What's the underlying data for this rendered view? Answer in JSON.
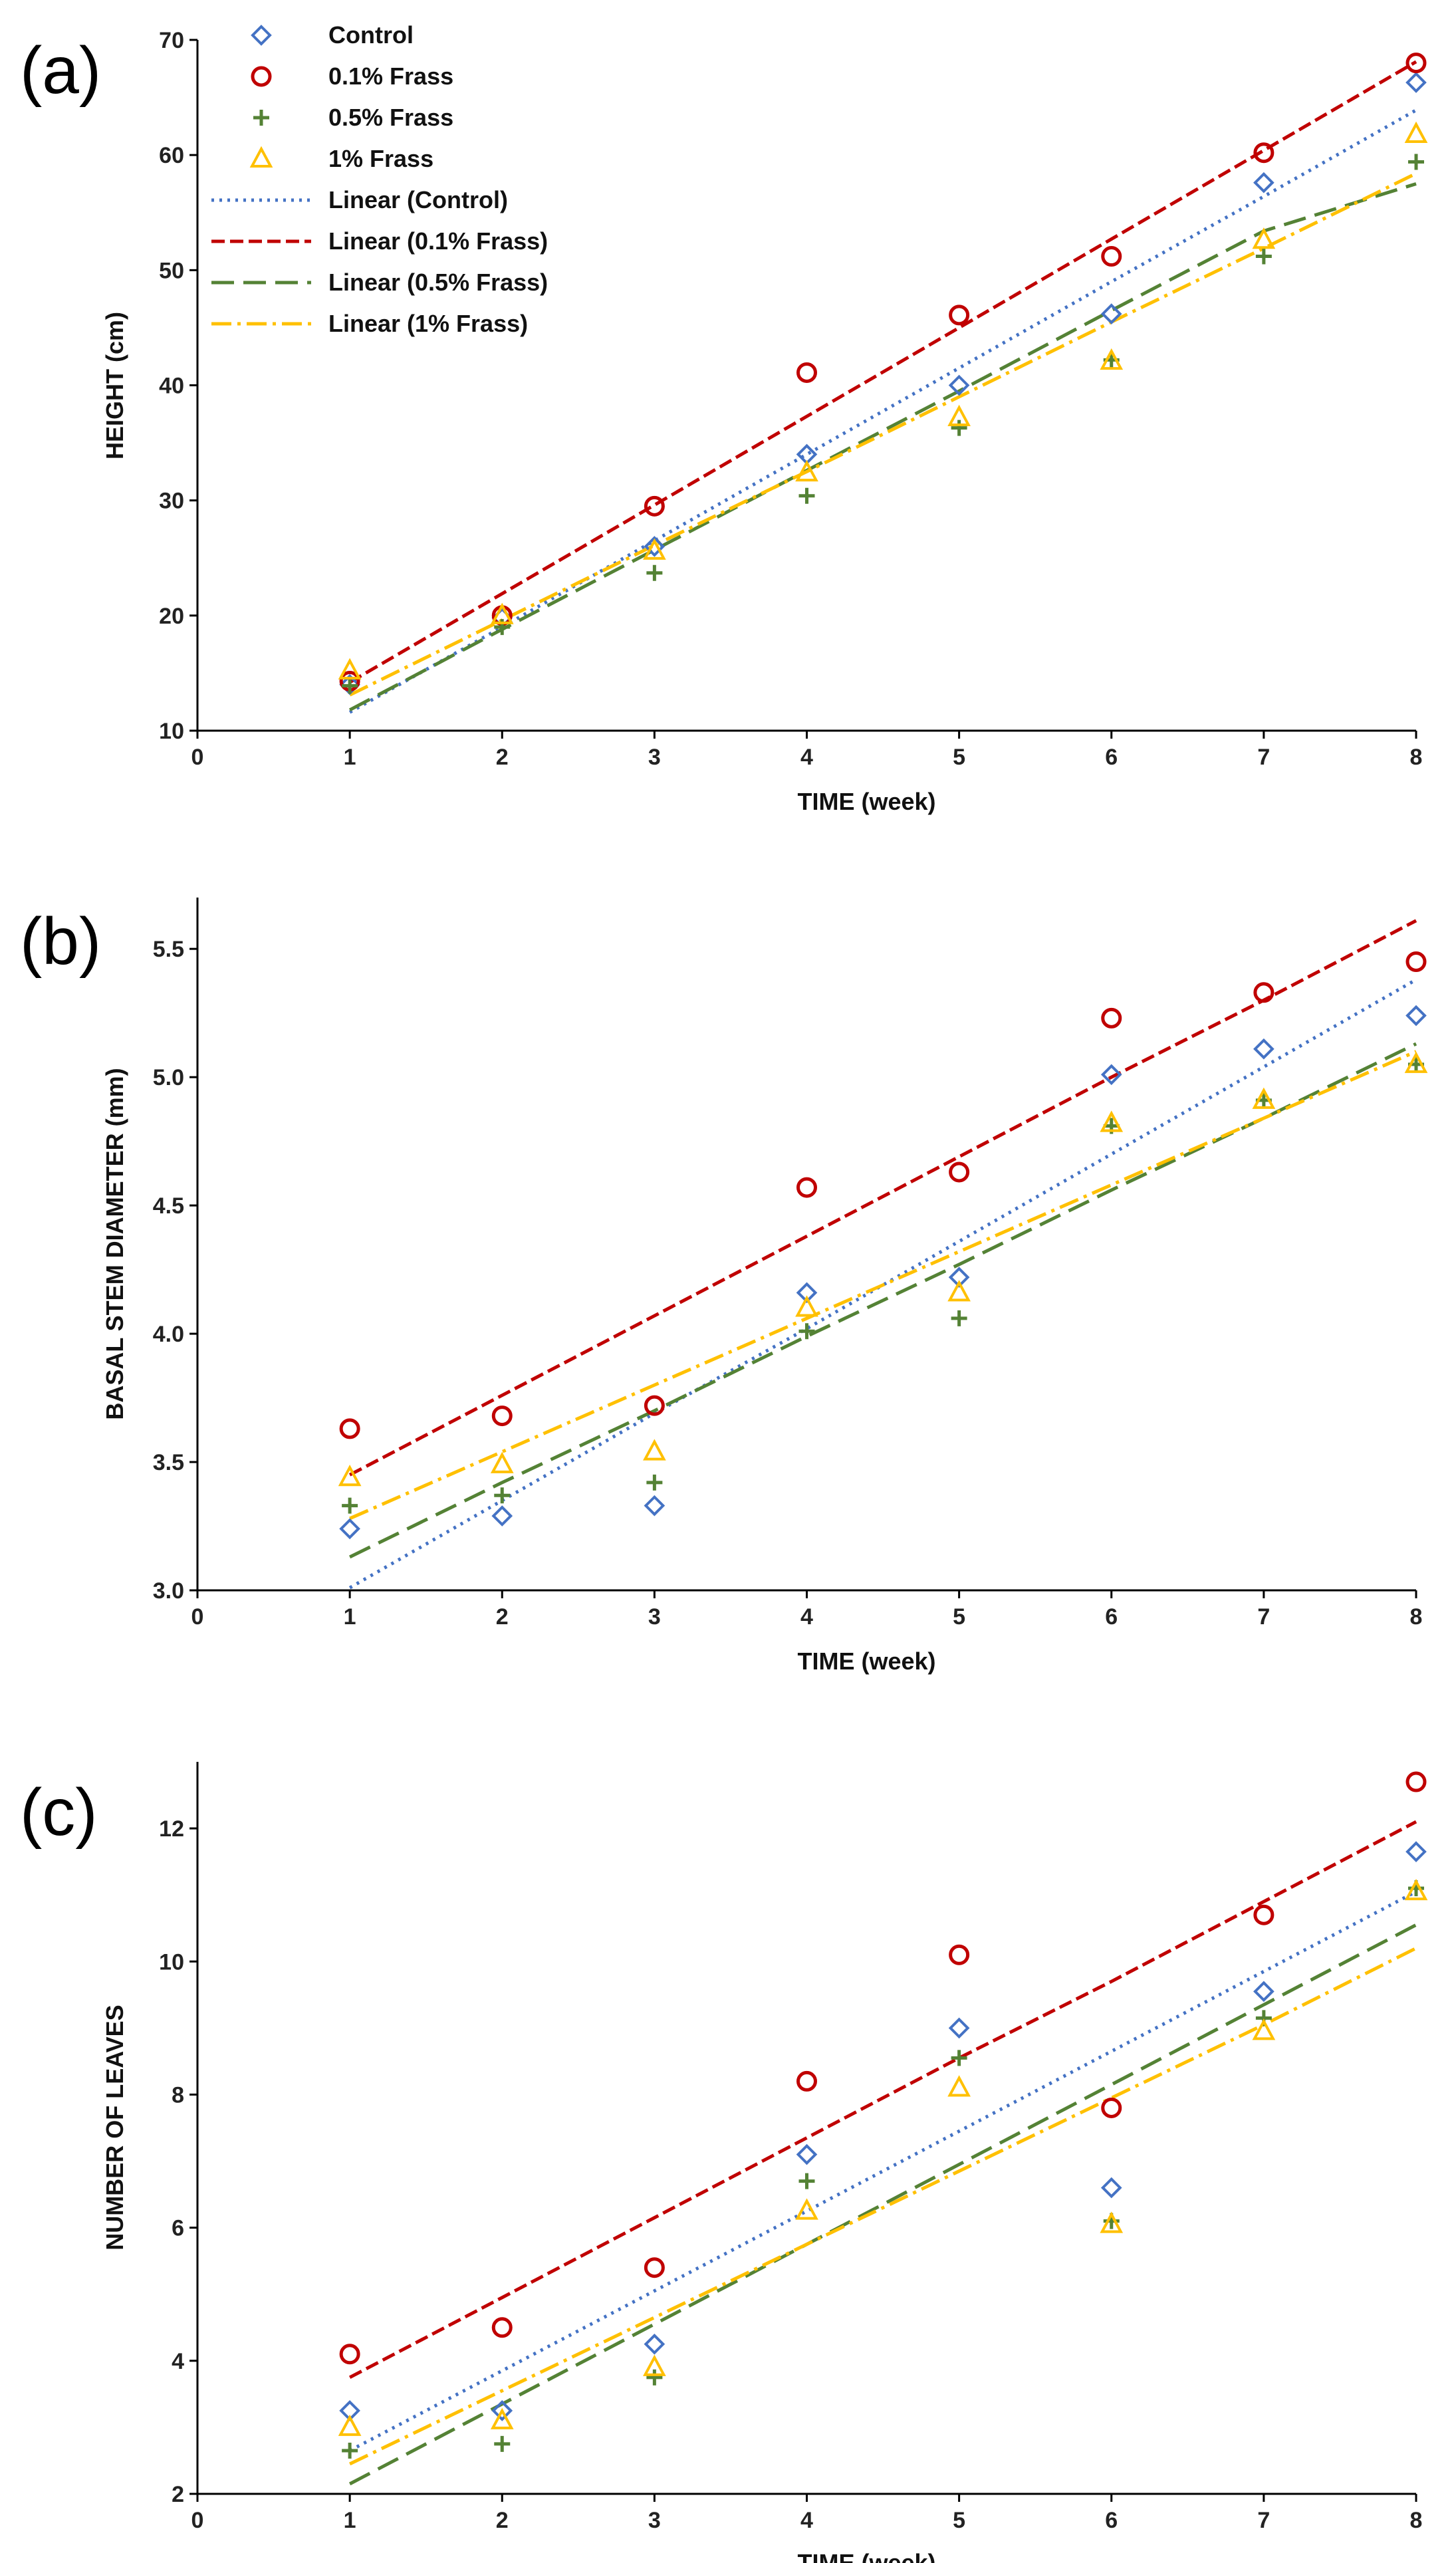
{
  "chart_data": [
    {
      "type": "scatter",
      "panel_label": "(a)",
      "title": "",
      "xlabel": "TIME (week)",
      "ylabel": "HEIGHT (cm)",
      "xlim": [
        0,
        8
      ],
      "ylim": [
        10,
        70
      ],
      "x_ticks": [
        "0",
        "1",
        "2",
        "3",
        "4",
        "5",
        "6",
        "7",
        "8"
      ],
      "y_ticks": [
        "10",
        "20",
        "30",
        "40",
        "50",
        "60",
        "70"
      ],
      "x": [
        1,
        2,
        3,
        4,
        5,
        6,
        7,
        8
      ],
      "series": [
        {
          "name": "Control",
          "marker": "diamond",
          "color": "#4472C4",
          "values": [
            14.0,
            19.8,
            26.0,
            34.0,
            40.0,
            46.2,
            57.6,
            66.3
          ],
          "trend": [
            11.6,
            19.0,
            26.5,
            34.0,
            41.5,
            49.0,
            56.4,
            63.9
          ]
        },
        {
          "name": "0.1% Frass",
          "marker": "circle",
          "color": "#C00000",
          "values": [
            14.3,
            20.0,
            29.5,
            41.1,
            46.1,
            51.2,
            60.2,
            68.0
          ],
          "trend": [
            14.2,
            21.9,
            29.6,
            37.3,
            45.0,
            52.7,
            60.4,
            68.1
          ]
        },
        {
          "name": "0.5% Frass",
          "marker": "plus",
          "color": "#548235",
          "values": [
            13.9,
            19.0,
            23.7,
            30.4,
            36.3,
            42.2,
            51.2,
            59.4
          ],
          "trend": [
            11.8,
            18.8,
            25.7,
            32.6,
            39.5,
            46.5,
            53.4,
            57.5
          ]
        },
        {
          "name": "1% Frass",
          "marker": "triangle",
          "color": "#FFC000",
          "values": [
            15.2,
            20.0,
            25.6,
            32.4,
            37.2,
            42.1,
            52.6,
            61.8
          ],
          "trend": [
            13.1,
            19.6,
            26.1,
            32.5,
            39.0,
            45.5,
            51.9,
            58.4
          ]
        }
      ],
      "legend": {
        "position": "top-left",
        "entries": [
          "Control",
          "0.1% Frass",
          "0.5% Frass",
          "1% Frass",
          "Linear (Control)",
          "Linear (0.1% Frass)",
          "Linear (0.5% Frass)",
          "Linear (1% Frass)"
        ]
      }
    },
    {
      "type": "scatter",
      "panel_label": "(b)",
      "title": "",
      "xlabel": "TIME (week)",
      "ylabel": "BASAL STEM DIAMETER (mm)",
      "xlim": [
        0,
        8
      ],
      "ylim": [
        3.0,
        5.7
      ],
      "x_ticks": [
        "0",
        "1",
        "2",
        "3",
        "4",
        "5",
        "6",
        "7",
        "8"
      ],
      "y_ticks": [
        "3.0",
        "3.5",
        "4.0",
        "4.5",
        "5.0",
        "5.5"
      ],
      "x": [
        1,
        2,
        3,
        4,
        5,
        6,
        7,
        8
      ],
      "series": [
        {
          "name": "Control",
          "marker": "diamond",
          "color": "#4472C4",
          "values": [
            3.24,
            3.29,
            3.33,
            4.16,
            4.22,
            5.01,
            5.11,
            5.24
          ],
          "trend": [
            3.01,
            3.35,
            3.69,
            4.02,
            4.36,
            4.7,
            5.04,
            5.38
          ]
        },
        {
          "name": "0.1% Frass",
          "marker": "circle",
          "color": "#C00000",
          "values": [
            3.63,
            3.68,
            3.72,
            4.57,
            4.63,
            5.23,
            5.33,
            5.45
          ],
          "trend": [
            3.45,
            3.76,
            4.07,
            4.38,
            4.69,
            5.0,
            5.3,
            5.61
          ]
        },
        {
          "name": "0.5% Frass",
          "marker": "plus",
          "color": "#548235",
          "values": [
            3.33,
            3.37,
            3.42,
            4.01,
            4.06,
            4.81,
            4.91,
            5.05
          ],
          "trend": [
            3.13,
            3.42,
            3.7,
            3.99,
            4.27,
            4.56,
            4.84,
            5.13
          ]
        },
        {
          "name": "1% Frass",
          "marker": "triangle",
          "color": "#FFC000",
          "values": [
            3.44,
            3.49,
            3.54,
            4.1,
            4.16,
            4.82,
            4.91,
            5.05
          ],
          "trend": [
            3.28,
            3.54,
            3.8,
            4.06,
            4.32,
            4.58,
            4.84,
            5.1
          ]
        }
      ]
    },
    {
      "type": "scatter",
      "panel_label": "(c)",
      "title": "",
      "xlabel": "TIME (week)",
      "ylabel": "NUMBER OF LEAVES",
      "xlim": [
        0,
        8
      ],
      "ylim": [
        2,
        13
      ],
      "x_ticks": [
        "0",
        "1",
        "2",
        "3",
        "4",
        "5",
        "6",
        "7",
        "8"
      ],
      "y_ticks": [
        "2",
        "4",
        "6",
        "8",
        "10",
        "12"
      ],
      "x": [
        1,
        2,
        3,
        4,
        5,
        6,
        7,
        8
      ],
      "series": [
        {
          "name": "Control",
          "marker": "diamond",
          "color": "#4472C4",
          "values": [
            3.25,
            3.25,
            4.25,
            7.1,
            9.0,
            6.6,
            9.55,
            11.65
          ],
          "trend": [
            2.65,
            3.85,
            5.05,
            6.25,
            7.45,
            8.65,
            9.85,
            11.05
          ]
        },
        {
          "name": "0.1% Frass",
          "marker": "circle",
          "color": "#C00000",
          "values": [
            4.1,
            4.5,
            5.4,
            8.2,
            10.1,
            7.8,
            10.7,
            12.7
          ],
          "trend": [
            3.75,
            4.95,
            6.15,
            7.35,
            8.55,
            9.7,
            10.9,
            12.1
          ]
        },
        {
          "name": "0.5% Frass",
          "marker": "plus",
          "color": "#548235",
          "values": [
            2.65,
            2.75,
            3.75,
            6.7,
            8.55,
            6.1,
            9.15,
            11.1
          ],
          "trend": [
            2.15,
            3.35,
            4.55,
            5.75,
            6.95,
            8.15,
            9.35,
            10.55
          ]
        },
        {
          "name": "1% Frass",
          "marker": "triangle",
          "color": "#FFC000",
          "values": [
            3.0,
            3.1,
            3.9,
            6.25,
            8.1,
            6.05,
            8.95,
            11.05
          ],
          "trend": [
            2.45,
            3.55,
            4.65,
            5.75,
            6.85,
            7.95,
            9.05,
            10.2
          ]
        }
      ]
    }
  ]
}
